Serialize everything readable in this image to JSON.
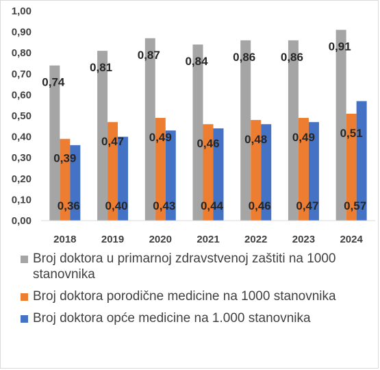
{
  "chart_data": {
    "type": "bar",
    "categories": [
      "2018",
      "2019",
      "2020",
      "2021",
      "2022",
      "2023",
      "2024"
    ],
    "ylim": [
      0,
      1.0
    ],
    "yticks": [
      "0,00",
      "0,10",
      "0,20",
      "0,30",
      "0,40",
      "0,50",
      "0,60",
      "0,70",
      "0,80",
      "0,90",
      "1,00"
    ],
    "grid": false,
    "legend_position": "bottom",
    "series": [
      {
        "name": "Broj doktora u primarnoj zdravstvenoj zaštiti na 1000 stanovnika",
        "color": "#a5a5a5",
        "values": [
          0.74,
          0.81,
          0.87,
          0.84,
          0.86,
          0.86,
          0.91
        ],
        "labels": [
          "0,74",
          "0,81",
          "0,87",
          "0,84",
          "0,86",
          "0,86",
          "0,91"
        ]
      },
      {
        "name": "Broj doktora porodične medicine na 1000 stanovnika",
        "color": "#ed7d31",
        "values": [
          0.39,
          0.47,
          0.49,
          0.46,
          0.48,
          0.49,
          0.51
        ],
        "labels": [
          "0,39",
          "0,47",
          "0,49",
          "0,46",
          "0,48",
          "0,49",
          "0,51"
        ]
      },
      {
        "name": "Broj doktora opće medicine na 1.000 stanovnika",
        "color": "#4472c4",
        "values": [
          0.36,
          0.4,
          0.43,
          0.44,
          0.46,
          0.47,
          0.57
        ],
        "labels": [
          "0,36",
          "0,40",
          "0,43",
          "0,44",
          "0,46",
          "0,47",
          "0,57"
        ]
      }
    ]
  }
}
